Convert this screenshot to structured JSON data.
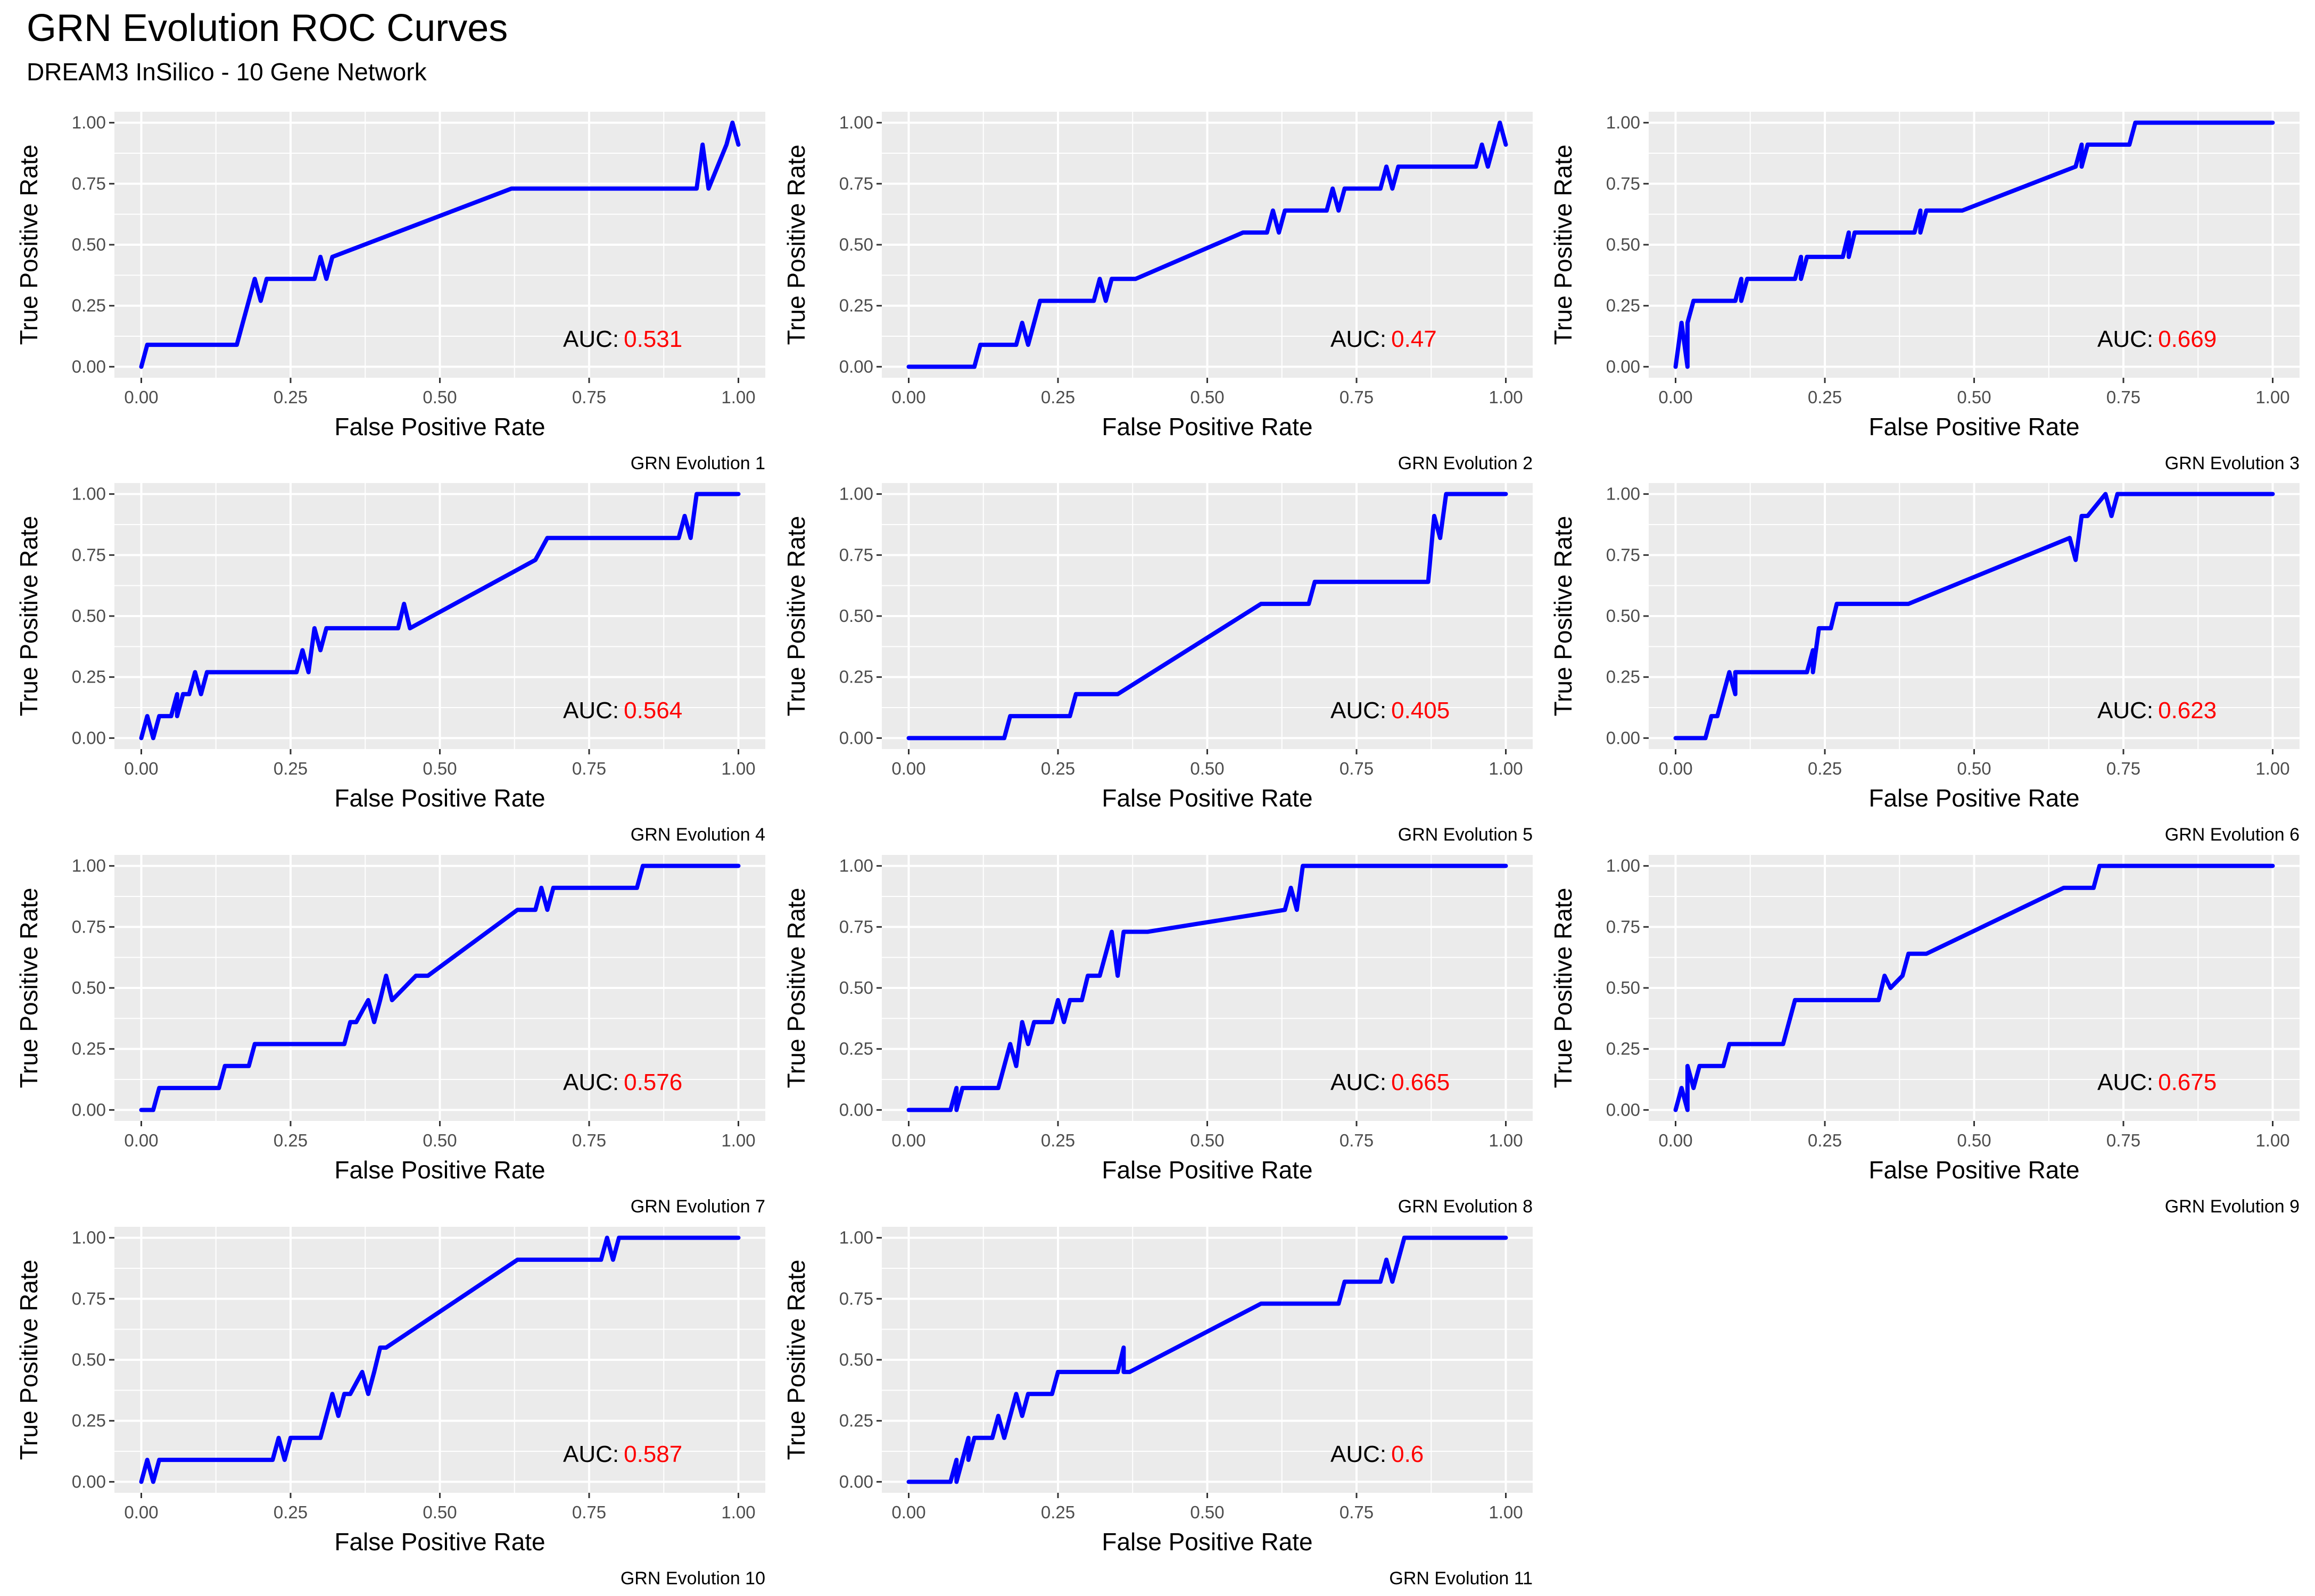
{
  "title": "GRN Evolution ROC Curves",
  "subtitle": "DREAM3 InSilico - 10 Gene Network",
  "colors": {
    "curve": "#0000ff",
    "auc_value": "#ff0000",
    "panel_bg": "#ebebeb",
    "grid": "#ffffff"
  },
  "chart_data": [
    {
      "type": "line",
      "caption": "GRN Evolution 1",
      "xlabel": "False Positive Rate",
      "ylabel": "True Positive Rate",
      "xlim": [
        0,
        1
      ],
      "ylim": [
        0,
        1
      ],
      "xticks": [
        "0.00",
        "0.25",
        "0.50",
        "0.75",
        "1.00"
      ],
      "yticks": [
        "0.00",
        "0.25",
        "0.50",
        "0.75",
        "1.00"
      ],
      "auc_label": "AUC:",
      "auc": "0.531",
      "x": [
        0,
        0.01,
        0.02,
        0.16,
        0.17,
        0.17,
        0.18,
        0.19,
        0.2,
        0.21,
        0.29,
        0.3,
        0.31,
        0.32,
        0.62,
        0.93,
        0.94,
        0.95,
        0.98,
        0.99,
        1.0
      ],
      "y": [
        0,
        0.09,
        0.09,
        0.09,
        0.18,
        0.18,
        0.27,
        0.36,
        0.27,
        0.36,
        0.36,
        0.45,
        0.36,
        0.45,
        0.73,
        0.73,
        0.91,
        0.73,
        0.91,
        1.0,
        0.91
      ]
    },
    {
      "type": "line",
      "caption": "GRN Evolution 2",
      "xlabel": "False Positive Rate",
      "ylabel": "True Positive Rate",
      "xlim": [
        0,
        1
      ],
      "ylim": [
        0,
        1
      ],
      "xticks": [
        "0.00",
        "0.25",
        "0.50",
        "0.75",
        "1.00"
      ],
      "yticks": [
        "0.00",
        "0.25",
        "0.50",
        "0.75",
        "1.00"
      ],
      "auc_label": "AUC:",
      "auc": "0.47",
      "x": [
        0,
        0.11,
        0.12,
        0.18,
        0.19,
        0.2,
        0.21,
        0.22,
        0.31,
        0.32,
        0.33,
        0.34,
        0.38,
        0.56,
        0.6,
        0.61,
        0.62,
        0.63,
        0.7,
        0.71,
        0.72,
        0.73,
        0.79,
        0.8,
        0.81,
        0.82,
        0.95,
        0.96,
        0.97,
        0.98,
        0.99,
        1.0
      ],
      "y": [
        0,
        0,
        0.09,
        0.09,
        0.18,
        0.09,
        0.18,
        0.27,
        0.27,
        0.36,
        0.27,
        0.36,
        0.36,
        0.55,
        0.55,
        0.64,
        0.55,
        0.64,
        0.64,
        0.73,
        0.64,
        0.73,
        0.73,
        0.82,
        0.73,
        0.82,
        0.82,
        0.91,
        0.82,
        0.91,
        1.0,
        0.91
      ]
    },
    {
      "type": "line",
      "caption": "GRN Evolution 3",
      "xlabel": "False Positive Rate",
      "ylabel": "True Positive Rate",
      "xlim": [
        0,
        1
      ],
      "ylim": [
        0,
        1
      ],
      "xticks": [
        "0.00",
        "0.25",
        "0.50",
        "0.75",
        "1.00"
      ],
      "yticks": [
        "0.00",
        "0.25",
        "0.50",
        "0.75",
        "1.00"
      ],
      "auc_label": "AUC:",
      "auc": "0.669",
      "x": [
        0,
        0.01,
        0.02,
        0.02,
        0.03,
        0.04,
        0.1,
        0.11,
        0.11,
        0.12,
        0.2,
        0.21,
        0.21,
        0.22,
        0.28,
        0.29,
        0.29,
        0.3,
        0.4,
        0.41,
        0.41,
        0.42,
        0.48,
        0.67,
        0.68,
        0.68,
        0.69,
        0.76,
        0.77,
        0.78,
        1.0
      ],
      "y": [
        0,
        0.18,
        0,
        0.18,
        0.27,
        0.27,
        0.27,
        0.36,
        0.27,
        0.36,
        0.36,
        0.45,
        0.36,
        0.45,
        0.45,
        0.55,
        0.45,
        0.55,
        0.55,
        0.64,
        0.55,
        0.64,
        0.64,
        0.82,
        0.91,
        0.82,
        0.91,
        0.91,
        1.0,
        1.0,
        1.0
      ]
    },
    {
      "type": "line",
      "caption": "GRN Evolution 4",
      "xlabel": "False Positive Rate",
      "ylabel": "True Positive Rate",
      "xlim": [
        0,
        1
      ],
      "ylim": [
        0,
        1
      ],
      "xticks": [
        "0.00",
        "0.25",
        "0.50",
        "0.75",
        "1.00"
      ],
      "yticks": [
        "0.00",
        "0.25",
        "0.50",
        "0.75",
        "1.00"
      ],
      "auc_label": "AUC:",
      "auc": "0.564",
      "x": [
        0,
        0.01,
        0.02,
        0.03,
        0.05,
        0.06,
        0.06,
        0.07,
        0.08,
        0.09,
        0.1,
        0.11,
        0.26,
        0.27,
        0.28,
        0.29,
        0.3,
        0.31,
        0.43,
        0.44,
        0.45,
        0.66,
        0.68,
        0.9,
        0.91,
        0.92,
        0.93,
        0.94,
        1.0
      ],
      "y": [
        0,
        0.09,
        0,
        0.09,
        0.09,
        0.18,
        0.09,
        0.18,
        0.18,
        0.27,
        0.18,
        0.27,
        0.27,
        0.36,
        0.27,
        0.45,
        0.36,
        0.45,
        0.45,
        0.55,
        0.45,
        0.73,
        0.82,
        0.82,
        0.91,
        0.82,
        1.0,
        1.0,
        1.0
      ]
    },
    {
      "type": "line",
      "caption": "GRN Evolution 5",
      "xlabel": "False Positive Rate",
      "ylabel": "True Positive Rate",
      "xlim": [
        0,
        1
      ],
      "ylim": [
        0,
        1
      ],
      "xticks": [
        "0.00",
        "0.25",
        "0.50",
        "0.75",
        "1.00"
      ],
      "yticks": [
        "0.00",
        "0.25",
        "0.50",
        "0.75",
        "1.00"
      ],
      "auc_label": "AUC:",
      "auc": "0.405",
      "x": [
        0,
        0.16,
        0.17,
        0.18,
        0.27,
        0.28,
        0.29,
        0.35,
        0.59,
        0.67,
        0.68,
        0.69,
        0.87,
        0.88,
        0.89,
        0.9,
        0.91,
        1.0
      ],
      "y": [
        0,
        0,
        0.09,
        0.09,
        0.09,
        0.18,
        0.18,
        0.18,
        0.55,
        0.55,
        0.64,
        0.64,
        0.64,
        0.91,
        0.82,
        1.0,
        1.0,
        1.0
      ]
    },
    {
      "type": "line",
      "caption": "GRN Evolution 6",
      "xlabel": "False Positive Rate",
      "ylabel": "True Positive Rate",
      "xlim": [
        0,
        1
      ],
      "ylim": [
        0,
        1
      ],
      "xticks": [
        "0.00",
        "0.25",
        "0.50",
        "0.75",
        "1.00"
      ],
      "yticks": [
        "0.00",
        "0.25",
        "0.50",
        "0.75",
        "1.00"
      ],
      "auc_label": "AUC:",
      "auc": "0.623",
      "x": [
        0,
        0.05,
        0.06,
        0.07,
        0.09,
        0.1,
        0.1,
        0.11,
        0.22,
        0.23,
        0.23,
        0.24,
        0.26,
        0.27,
        0.28,
        0.39,
        0.66,
        0.67,
        0.68,
        0.69,
        0.72,
        0.73,
        0.74,
        1.0
      ],
      "y": [
        0,
        0,
        0.09,
        0.09,
        0.27,
        0.18,
        0.27,
        0.27,
        0.27,
        0.36,
        0.27,
        0.45,
        0.45,
        0.55,
        0.55,
        0.55,
        0.82,
        0.73,
        0.91,
        0.91,
        1.0,
        0.91,
        1.0,
        1.0
      ]
    },
    {
      "type": "line",
      "caption": "GRN Evolution 7",
      "xlabel": "False Positive Rate",
      "ylabel": "True Positive Rate",
      "xlim": [
        0,
        1
      ],
      "ylim": [
        0,
        1
      ],
      "xticks": [
        "0.00",
        "0.25",
        "0.50",
        "0.75",
        "1.00"
      ],
      "yticks": [
        "0.00",
        "0.25",
        "0.50",
        "0.75",
        "1.00"
      ],
      "auc_label": "AUC:",
      "auc": "0.576",
      "x": [
        0,
        0.02,
        0.03,
        0.04,
        0.13,
        0.14,
        0.15,
        0.18,
        0.19,
        0.2,
        0.34,
        0.35,
        0.36,
        0.38,
        0.39,
        0.4,
        0.41,
        0.42,
        0.44,
        0.46,
        0.48,
        0.63,
        0.66,
        0.67,
        0.68,
        0.69,
        0.83,
        0.84,
        0.85,
        1.0
      ],
      "y": [
        0,
        0,
        0.09,
        0.09,
        0.09,
        0.18,
        0.18,
        0.18,
        0.27,
        0.27,
        0.27,
        0.36,
        0.36,
        0.45,
        0.36,
        0.45,
        0.55,
        0.45,
        0.5,
        0.55,
        0.55,
        0.82,
        0.82,
        0.91,
        0.82,
        0.91,
        0.91,
        1.0,
        1.0,
        1.0
      ]
    },
    {
      "type": "line",
      "caption": "GRN Evolution 8",
      "xlabel": "False Positive Rate",
      "ylabel": "True Positive Rate",
      "xlim": [
        0,
        1
      ],
      "ylim": [
        0,
        1
      ],
      "xticks": [
        "0.00",
        "0.25",
        "0.50",
        "0.75",
        "1.00"
      ],
      "yticks": [
        "0.00",
        "0.25",
        "0.50",
        "0.75",
        "1.00"
      ],
      "auc_label": "AUC:",
      "auc": "0.665",
      "x": [
        0,
        0.07,
        0.08,
        0.08,
        0.09,
        0.15,
        0.16,
        0.17,
        0.18,
        0.19,
        0.2,
        0.21,
        0.24,
        0.25,
        0.26,
        0.27,
        0.29,
        0.3,
        0.32,
        0.34,
        0.35,
        0.36,
        0.4,
        0.63,
        0.64,
        0.65,
        0.66,
        0.67,
        1.0
      ],
      "y": [
        0,
        0,
        0.09,
        0,
        0.09,
        0.09,
        0.18,
        0.27,
        0.18,
        0.36,
        0.27,
        0.36,
        0.36,
        0.45,
        0.36,
        0.45,
        0.45,
        0.55,
        0.55,
        0.73,
        0.55,
        0.73,
        0.73,
        0.82,
        0.91,
        0.82,
        1.0,
        1.0,
        1.0
      ]
    },
    {
      "type": "line",
      "caption": "GRN Evolution 9",
      "xlabel": "False Positive Rate",
      "ylabel": "True Positive Rate",
      "xlim": [
        0,
        1
      ],
      "ylim": [
        0,
        1
      ],
      "xticks": [
        "0.00",
        "0.25",
        "0.50",
        "0.75",
        "1.00"
      ],
      "yticks": [
        "0.00",
        "0.25",
        "0.50",
        "0.75",
        "1.00"
      ],
      "auc_label": "AUC:",
      "auc": "0.675",
      "x": [
        0,
        0.01,
        0.02,
        0.02,
        0.03,
        0.04,
        0.08,
        0.09,
        0.1,
        0.18,
        0.19,
        0.2,
        0.21,
        0.34,
        0.35,
        0.36,
        0.38,
        0.39,
        0.4,
        0.42,
        0.65,
        0.7,
        0.71,
        0.72,
        1.0
      ],
      "y": [
        0,
        0.09,
        0,
        0.18,
        0.09,
        0.18,
        0.18,
        0.27,
        0.27,
        0.27,
        0.36,
        0.45,
        0.45,
        0.45,
        0.55,
        0.5,
        0.55,
        0.64,
        0.64,
        0.64,
        0.91,
        0.91,
        1.0,
        1.0,
        1.0
      ]
    },
    {
      "type": "line",
      "caption": "GRN Evolution 10",
      "xlabel": "False Positive Rate",
      "ylabel": "True Positive Rate",
      "xlim": [
        0,
        1
      ],
      "ylim": [
        0,
        1
      ],
      "xticks": [
        "0.00",
        "0.25",
        "0.50",
        "0.75",
        "1.00"
      ],
      "yticks": [
        "0.00",
        "0.25",
        "0.50",
        "0.75",
        "1.00"
      ],
      "auc_label": "AUC:",
      "auc": "0.587",
      "x": [
        0,
        0.01,
        0.02,
        0.03,
        0.22,
        0.23,
        0.24,
        0.25,
        0.3,
        0.31,
        0.32,
        0.33,
        0.34,
        0.35,
        0.37,
        0.38,
        0.39,
        0.4,
        0.41,
        0.63,
        0.77,
        0.78,
        0.79,
        0.8,
        1.0
      ],
      "y": [
        0,
        0.09,
        0,
        0.09,
        0.09,
        0.18,
        0.09,
        0.18,
        0.18,
        0.27,
        0.36,
        0.27,
        0.36,
        0.36,
        0.45,
        0.36,
        0.45,
        0.55,
        0.55,
        0.91,
        0.91,
        1.0,
        0.91,
        1.0,
        1.0
      ]
    },
    {
      "type": "line",
      "caption": "GRN Evolution 11",
      "xlabel": "False Positive Rate",
      "ylabel": "True Positive Rate",
      "xlim": [
        0,
        1
      ],
      "ylim": [
        0,
        1
      ],
      "xticks": [
        "0.00",
        "0.25",
        "0.50",
        "0.75",
        "1.00"
      ],
      "yticks": [
        "0.00",
        "0.25",
        "0.50",
        "0.75",
        "1.00"
      ],
      "auc_label": "AUC:",
      "auc": "0.6",
      "x": [
        0,
        0.07,
        0.08,
        0.08,
        0.09,
        0.1,
        0.1,
        0.11,
        0.14,
        0.15,
        0.16,
        0.18,
        0.19,
        0.2,
        0.24,
        0.25,
        0.26,
        0.35,
        0.36,
        0.36,
        0.37,
        0.59,
        0.72,
        0.73,
        0.74,
        0.79,
        0.8,
        0.81,
        0.82,
        0.83,
        0.84,
        1.0
      ],
      "y": [
        0,
        0,
        0.09,
        0,
        0.09,
        0.18,
        0.09,
        0.18,
        0.18,
        0.27,
        0.18,
        0.36,
        0.27,
        0.36,
        0.36,
        0.45,
        0.45,
        0.45,
        0.55,
        0.45,
        0.45,
        0.73,
        0.73,
        0.82,
        0.82,
        0.82,
        0.91,
        0.82,
        0.91,
        1.0,
        1.0,
        1.0
      ]
    }
  ]
}
